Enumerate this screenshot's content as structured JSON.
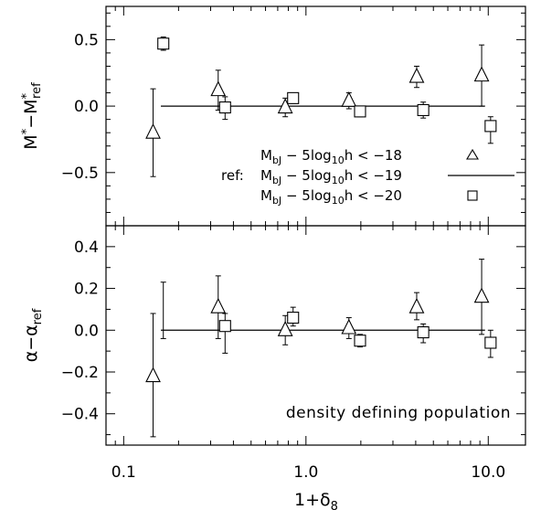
{
  "chart_data": [
    {
      "type": "scatter",
      "panel": "top",
      "ylabel": "M*-M*ref",
      "x_scale": "log",
      "xlim": [
        0.08,
        16
      ],
      "ylim": [
        -0.9,
        0.75
      ],
      "yticks": [
        0.5,
        0.0,
        -0.5
      ],
      "ytick_labels": [
        "0.5",
        "0.0",
        "−0.5"
      ],
      "reference_line": {
        "x": [
          0.16,
          9.6
        ],
        "y": 0.0
      },
      "series": [
        {
          "name": "M_bJ - 5log10h < -18",
          "marker": "triangle",
          "points": [
            {
              "x": 0.145,
              "y": -0.2,
              "ylo": -0.53,
              "yhi": 0.13
            },
            {
              "x": 0.33,
              "y": 0.12,
              "ylo": -0.03,
              "yhi": 0.27
            },
            {
              "x": 0.77,
              "y": -0.01,
              "ylo": -0.08,
              "yhi": 0.06
            },
            {
              "x": 1.72,
              "y": 0.04,
              "ylo": -0.02,
              "yhi": 0.1
            },
            {
              "x": 4.05,
              "y": 0.22,
              "ylo": 0.14,
              "yhi": 0.3
            },
            {
              "x": 9.2,
              "y": 0.23,
              "ylo": 0.0,
              "yhi": 0.46
            }
          ]
        },
        {
          "name": "M_bJ - 5log10h < -20",
          "marker": "square",
          "points": [
            {
              "x": 0.165,
              "y": 0.47,
              "ylo": 0.42,
              "yhi": 0.52
            },
            {
              "x": 0.36,
              "y": -0.01,
              "ylo": -0.1,
              "yhi": 0.07
            },
            {
              "x": 0.85,
              "y": 0.06,
              "ylo": 0.02,
              "yhi": 0.1
            },
            {
              "x": 1.98,
              "y": -0.04,
              "ylo": -0.08,
              "yhi": 0.0
            },
            {
              "x": 4.4,
              "y": -0.03,
              "ylo": -0.09,
              "yhi": 0.03
            },
            {
              "x": 10.3,
              "y": -0.15,
              "ylo": -0.28,
              "yhi": -0.08
            }
          ]
        }
      ],
      "legend": {
        "placement": "center-right",
        "ref_prefix": "ref:",
        "entries": [
          {
            "main": "M",
            "sub": "bJ",
            "mid": " − 5log",
            "sub2": "10",
            "tail": "h < −18",
            "marker": "triangle"
          },
          {
            "main": "M",
            "sub": "bJ",
            "mid": " − 5log",
            "sub2": "10",
            "tail": "h < −19",
            "marker": "line"
          },
          {
            "main": "M",
            "sub": "bJ",
            "mid": " − 5log",
            "sub2": "10",
            "tail": "h < −20",
            "marker": "square"
          }
        ]
      }
    },
    {
      "type": "scatter",
      "panel": "bottom",
      "ylabel": "α-αref",
      "x_scale": "log",
      "xlim": [
        0.08,
        16
      ],
      "ylim": [
        -0.55,
        0.5
      ],
      "yticks": [
        0.4,
        0.2,
        0.0,
        -0.2,
        -0.4
      ],
      "ytick_labels": [
        "0.4",
        "0.2",
        "0.0",
        "−0.2",
        "−0.4"
      ],
      "xticks": [
        0.1,
        1.0,
        10.0
      ],
      "xtick_labels": [
        "0.1",
        "1.0",
        "10.0"
      ],
      "xlabel": "1+δ8",
      "reference_line": {
        "x": [
          0.16,
          9.6
        ],
        "y": 0.0
      },
      "annotation": "density defining population",
      "series": [
        {
          "name": "M_bJ - 5log10h < -18",
          "marker": "triangle",
          "points": [
            {
              "x": 0.145,
              "y": -0.22,
              "ylo": -0.51,
              "yhi": 0.08
            },
            {
              "x": 0.33,
              "y": 0.11,
              "ylo": -0.04,
              "yhi": 0.26
            },
            {
              "x": 0.77,
              "y": 0.0,
              "ylo": -0.07,
              "yhi": 0.07
            },
            {
              "x": 1.72,
              "y": 0.01,
              "ylo": -0.04,
              "yhi": 0.06
            },
            {
              "x": 4.05,
              "y": 0.11,
              "ylo": 0.05,
              "yhi": 0.18
            },
            {
              "x": 9.2,
              "y": 0.16,
              "ylo": -0.02,
              "yhi": 0.34
            }
          ]
        },
        {
          "name": "M_bJ - 5log10h < -20",
          "marker": "square",
          "points": [
            {
              "x": 0.165,
              "y": null,
              "ylo": -0.04,
              "yhi": 0.23
            },
            {
              "x": 0.36,
              "y": 0.02,
              "ylo": -0.11,
              "yhi": 0.08
            },
            {
              "x": 0.85,
              "y": 0.06,
              "ylo": 0.02,
              "yhi": 0.11
            },
            {
              "x": 1.98,
              "y": -0.05,
              "ylo": -0.08,
              "yhi": -0.02
            },
            {
              "x": 4.4,
              "y": -0.01,
              "ylo": -0.06,
              "yhi": 0.03
            },
            {
              "x": 10.3,
              "y": -0.06,
              "ylo": -0.13,
              "yhi": 0.0
            }
          ]
        }
      ]
    }
  ]
}
